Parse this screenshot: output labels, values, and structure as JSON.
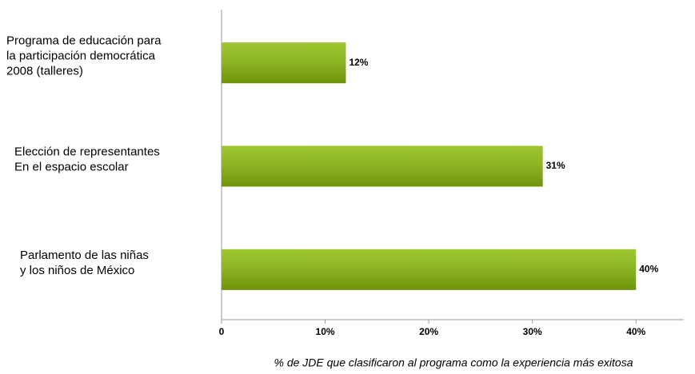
{
  "chart_data": {
    "type": "bar",
    "orientation": "horizontal",
    "categories": [
      [
        "Programa de  educación para",
        "la participación democrática",
        "2008 (talleres)"
      ],
      [
        "Elección de representantes",
        "En el espacio escolar"
      ],
      [
        "Parlamento de las niñas",
        "y los niños de México"
      ]
    ],
    "values": [
      12,
      31,
      40
    ],
    "value_labels": [
      "12%",
      "31%",
      "40%"
    ],
    "color": "#8cbd0c",
    "xlim": [
      0,
      45
    ],
    "xticks": [
      0,
      {
        "value": 10,
        "label": "10%"
      },
      {
        "value": 20,
        "label": "20%"
      },
      {
        "value": 30,
        "label": "30%"
      },
      {
        "value": 40,
        "label": "40%"
      }
    ],
    "xlabel": "% de JDE que clasificaron al programa como la experiencia más exitosa",
    "grid": false
  }
}
